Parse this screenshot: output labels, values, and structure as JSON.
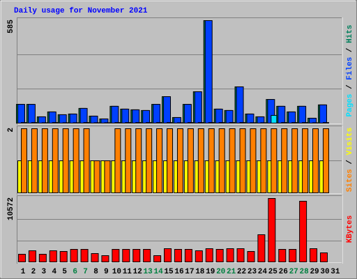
{
  "chart_data": {
    "type": "bar",
    "title": "Daily usage for November 2021",
    "categories": [
      1,
      2,
      3,
      4,
      5,
      6,
      7,
      8,
      9,
      10,
      11,
      12,
      13,
      14,
      15,
      16,
      17,
      18,
      19,
      20,
      21,
      22,
      23,
      24,
      25,
      26,
      27,
      28,
      29,
      30,
      31
    ],
    "weekends": [
      6,
      7,
      13,
      14,
      20,
      21,
      27,
      28
    ],
    "weekend_color": "#008040",
    "legend_separator": " / ",
    "panels": [
      {
        "ylim": [
          0,
          585
        ],
        "grid": [
          195,
          390
        ],
        "series": [
          {
            "name": "Hits",
            "color": "#00805c",
            "values": [
              107,
              107,
              36,
              64,
              48,
              52,
              84,
              40,
              24,
              96,
              80,
              76,
              72,
              107,
              151,
              32,
              107,
              179,
              585,
              80,
              72,
              207,
              52,
              36,
              135,
              96,
              64,
              96,
              28,
              104,
              0
            ]
          },
          {
            "name": "Files",
            "color": "#0040ff",
            "values": [
              107,
              107,
              36,
              64,
              48,
              52,
              84,
              40,
              24,
              96,
              80,
              76,
              72,
              107,
              151,
              32,
              107,
              179,
              585,
              80,
              72,
              207,
              52,
              36,
              135,
              96,
              64,
              96,
              28,
              104,
              0
            ]
          },
          {
            "name": "Pages",
            "color": "#00e0ff",
            "values": [
              3,
              3,
              2,
              3,
              2,
              2,
              3,
              2,
              2,
              3,
              3,
              3,
              3,
              3,
              3,
              2,
              3,
              3,
              3,
              3,
              3,
              3,
              2,
              2,
              44,
              3,
              3,
              3,
              2,
              3,
              0
            ]
          }
        ]
      },
      {
        "ylim": [
          0,
          2
        ],
        "grid": [
          1
        ],
        "series": [
          {
            "name": "Visits",
            "color": "#ffff00",
            "values": [
              1,
              1,
              1,
              1,
              1,
              1,
              1,
              1,
              1,
              1,
              1,
              1,
              1,
              1,
              1,
              1,
              1,
              1,
              1,
              1,
              1,
              1,
              1,
              1,
              1,
              1,
              1,
              1,
              1,
              1,
              0
            ]
          },
          {
            "name": "Sites",
            "color": "#ff8000",
            "values": [
              2,
              2,
              2,
              2,
              2,
              2,
              2,
              1,
              1,
              2,
              2,
              2,
              2,
              2,
              2,
              2,
              2,
              2,
              2,
              2,
              2,
              2,
              2,
              2,
              2,
              2,
              2,
              2,
              2,
              2,
              0
            ]
          }
        ]
      },
      {
        "ylim": [
          0,
          10572
        ],
        "grid": [
          3524,
          7048
        ],
        "series": [
          {
            "name": "KBytes",
            "color": "#ff0000",
            "values": [
              1278,
              1859,
              1278,
              1859,
              1743,
              2091,
              2091,
              1394,
              1046,
              2091,
              2091,
              2091,
              2091,
              1046,
              2207,
              2091,
              2091,
              1859,
              2207,
              2091,
              2207,
              2207,
              1743,
              4531,
              10572,
              2091,
              2091,
              10108,
              2207,
              1510,
              0
            ]
          }
        ]
      }
    ]
  }
}
